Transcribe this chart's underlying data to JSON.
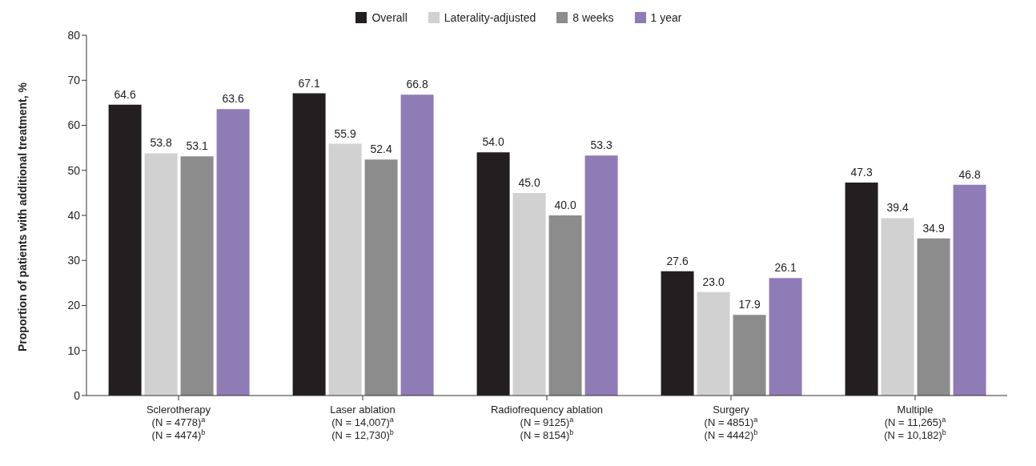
{
  "chart_data": {
    "type": "bar",
    "ylabel": "Proportion of patients with additional treatment, %",
    "categories": [
      "Sclerotherapy\n(N = 4778)$^{a}$\n(N = 4474)$^{b}$",
      "Laser ablation\n(N = 14,007)$^{a}$\n(N = 12,730)$^{b}$",
      "Radiofrequency ablation\n(N = 9125)$^{a}$\n(N = 8154)$^{b}$",
      "Surgery\n(N = 4851)$^{a}$\n(N = 4442)$^{b}$",
      "Multiple\n(N = 11,265)$^{a}$\n(N = 10,182)$^{b}$"
    ],
    "series": [
      {
        "name": "Overall",
        "color": "#231f20",
        "values": [
          64.6,
          67.1,
          54.0,
          27.6,
          47.3
        ],
        "value_labels": [
          "64.6",
          "67.1",
          "54.0",
          "27.6",
          "47.3"
        ]
      },
      {
        "name": "Laterality-adjusted",
        "color": "#d1d1d1",
        "values": [
          53.8,
          55.9,
          45.0,
          23.0,
          39.4
        ],
        "value_labels": [
          "53.8",
          "55.9",
          "45.0",
          "23.0",
          "39.4"
        ]
      },
      {
        "name": "8 weeks",
        "color": "#8c8c8c",
        "values": [
          53.1,
          52.4,
          40.0,
          17.9,
          34.9
        ],
        "value_labels": [
          "53.1",
          "52.4",
          "40.0",
          "17.9",
          "34.9"
        ]
      },
      {
        "name": "1 year",
        "color": "#8f7bb5",
        "values": [
          63.6,
          66.8,
          53.3,
          26.1,
          46.8
        ],
        "value_labels": [
          "63.6",
          "66.8",
          "53.3",
          "26.1",
          "46.8"
        ]
      }
    ],
    "ylim": [
      0,
      80
    ],
    "yticks": [
      0,
      10,
      20,
      30,
      40,
      50,
      60,
      70,
      80
    ],
    "grid": false,
    "legend": "top"
  }
}
